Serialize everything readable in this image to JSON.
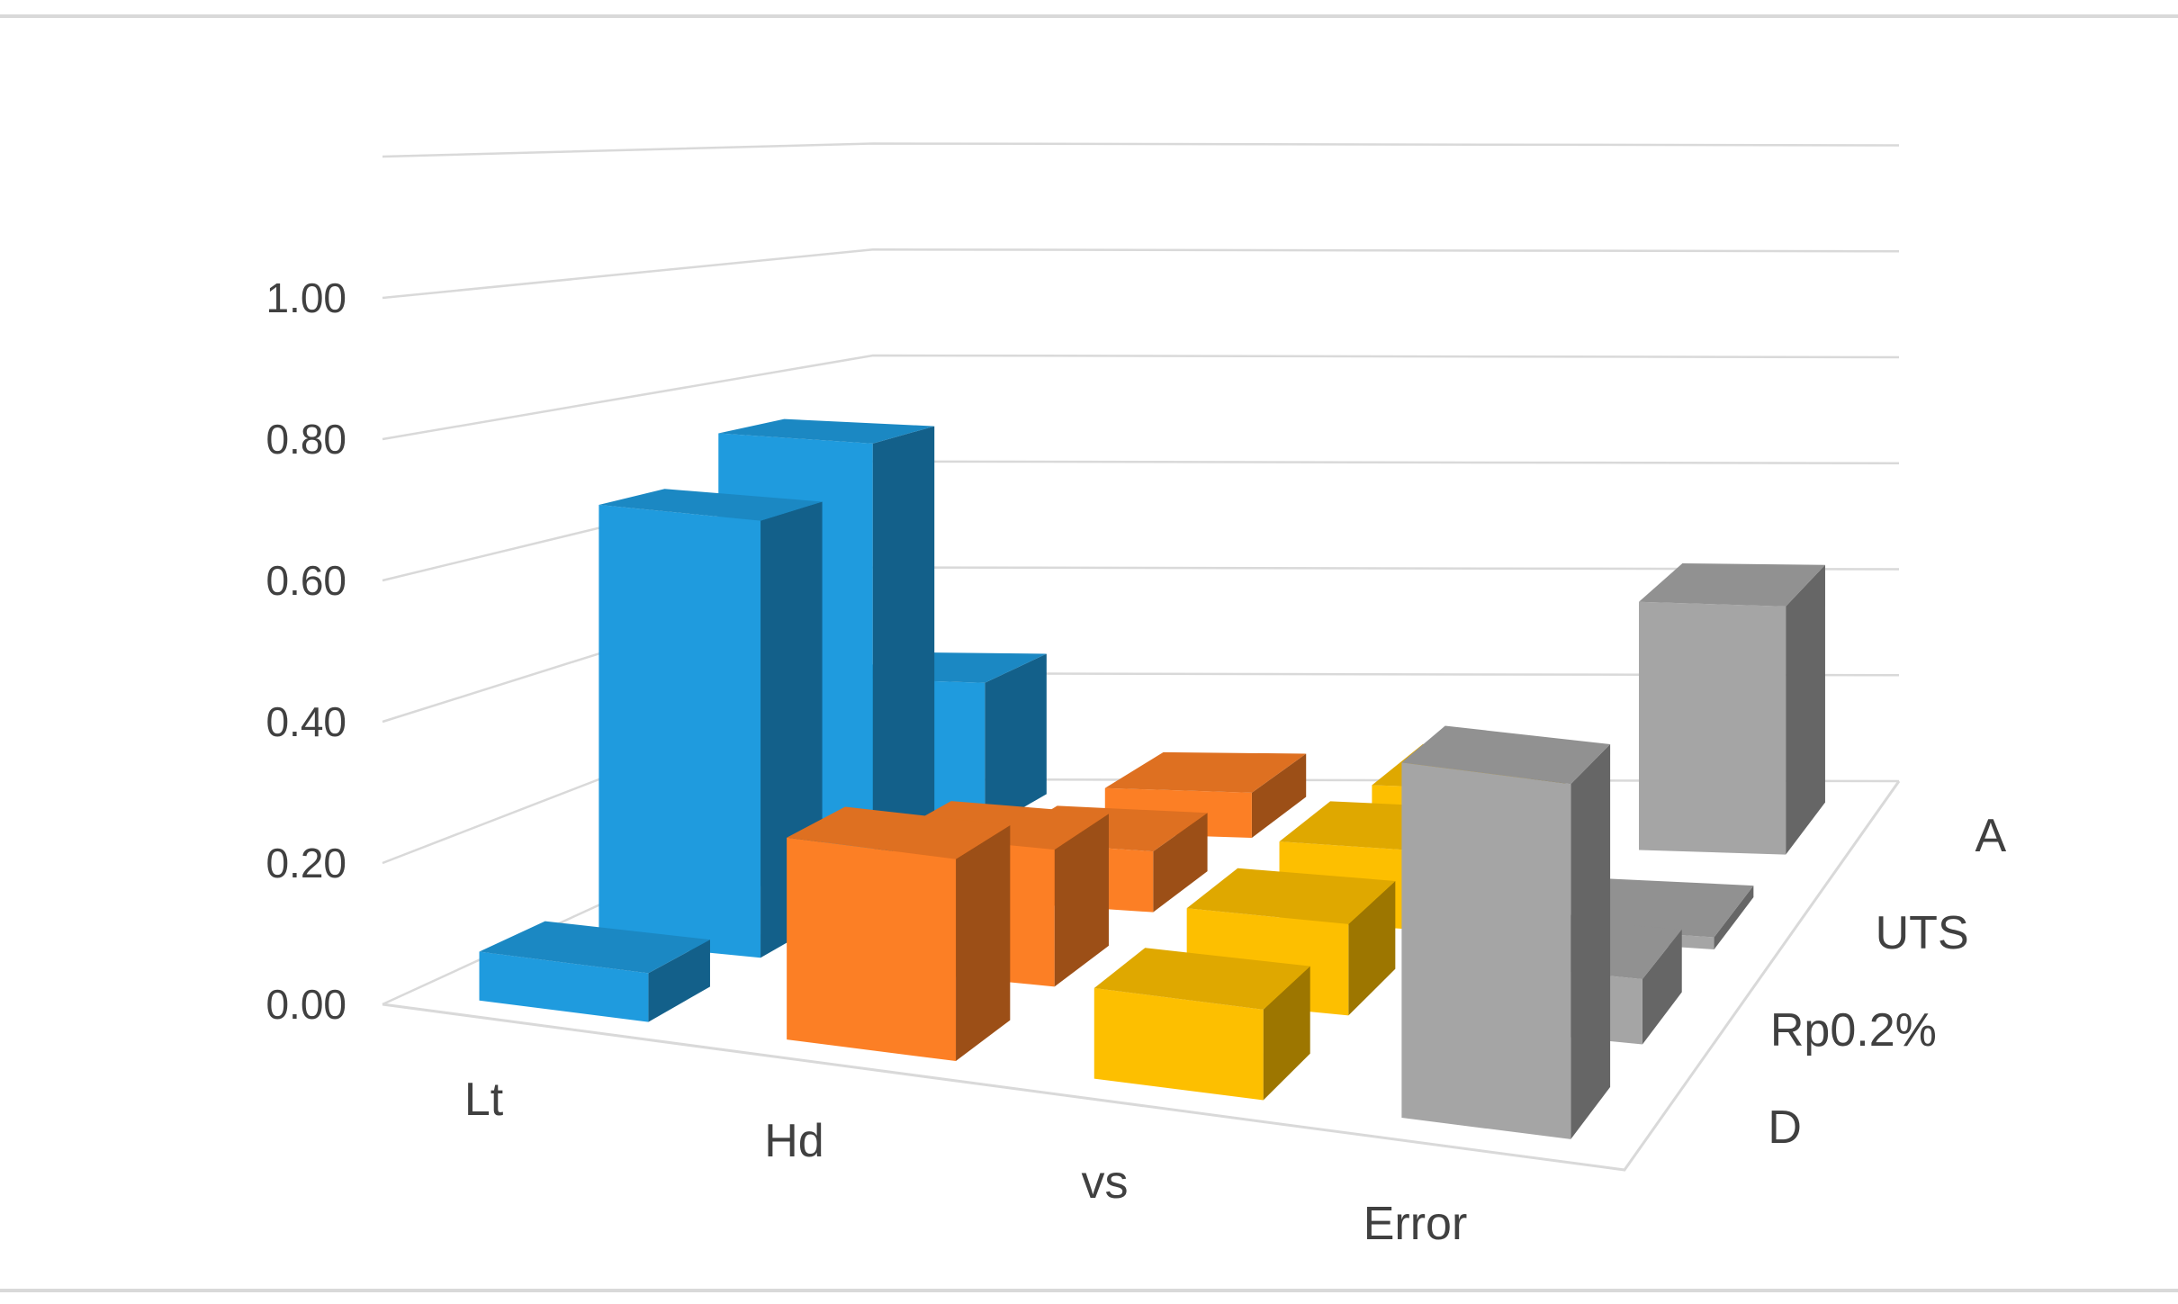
{
  "chart_data": {
    "type": "bar",
    "variant": "3d-column",
    "title": "",
    "categories": [
      "Lt",
      "Hd",
      "vs",
      "Error"
    ],
    "series": [
      {
        "name": "D",
        "values": [
          0.07,
          0.29,
          0.13,
          0.51
        ]
      },
      {
        "name": "Rp0.2%",
        "values": [
          0.67,
          0.21,
          0.14,
          0.1
        ]
      },
      {
        "name": "UTS",
        "values": [
          0.74,
          0.1,
          0.13,
          0.02
        ]
      },
      {
        "name": "A",
        "values": [
          0.26,
          0.08,
          0.1,
          0.44
        ]
      }
    ],
    "depth_labels": [
      "D",
      "Rp0.2%",
      "UTS",
      "A"
    ],
    "colors": [
      "#1f9bde",
      "#fc7f25",
      "#fdbf00",
      "#a5a5a5"
    ],
    "yticks": [
      "0.00",
      "0.20",
      "0.40",
      "0.60",
      "0.80",
      "1.00"
    ],
    "ylim": [
      0,
      1.2
    ],
    "grid": true,
    "legend": "none"
  }
}
